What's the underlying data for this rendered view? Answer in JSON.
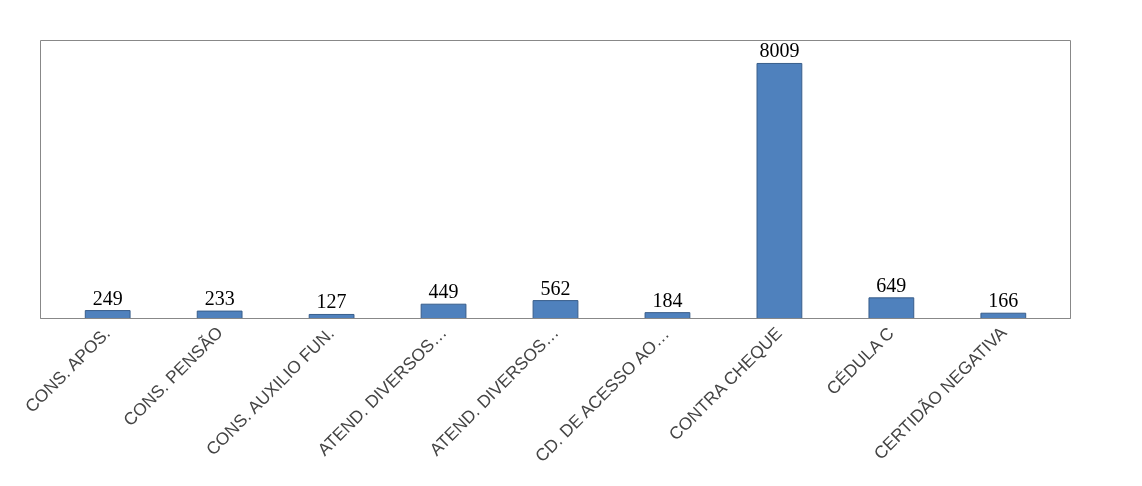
{
  "chart_data": {
    "type": "bar",
    "categories": [
      "CONS. APOS.",
      "CONS. PENSÃO",
      "CONS. AUXILIO FUN.",
      "ATEND. DIVERSOS…",
      "ATEND. DIVERSOS…",
      "CD. DE ACESSO AO…",
      "CONTRA CHEQUE",
      "CÉDULA C",
      "CERTIDÃO NEGATIVA"
    ],
    "values": [
      249,
      233,
      127,
      449,
      562,
      184,
      8009,
      649,
      166
    ],
    "color": "#4f81bd",
    "data_labels": true
  }
}
